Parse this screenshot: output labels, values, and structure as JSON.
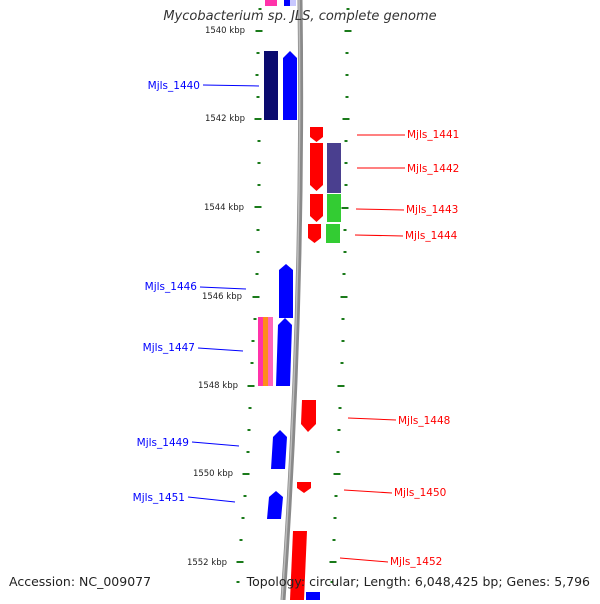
{
  "title": "Mycobacterium sp. JLS, complete genome",
  "accession": "Accession: NC_009077",
  "topology": "Topology: circular; Length: 6,048,425 bp; Genes: 5,796",
  "scale_labels": [
    "1540 kbp",
    "1542 kbp",
    "1544 kbp",
    "1546 kbp",
    "1548 kbp",
    "1550 kbp",
    "1552 kbp"
  ],
  "genes_left": [
    {
      "label": "Mjls_1440",
      "color": "#0000ff"
    },
    {
      "label": "Mjls_1446",
      "color": "#0000ff"
    },
    {
      "label": "Mjls_1447",
      "color": "#0000ff"
    },
    {
      "label": "Mjls_1449",
      "color": "#0000ff"
    },
    {
      "label": "Mjls_1451",
      "color": "#0000ff"
    }
  ],
  "genes_right": [
    {
      "label": "Mjls_1441",
      "color": "#ff0000"
    },
    {
      "label": "Mjls_1442",
      "color": "#ff0000"
    },
    {
      "label": "Mjls_1443",
      "color": "#ff0000"
    },
    {
      "label": "Mjls_1444",
      "color": "#ff0000"
    },
    {
      "label": "Mjls_1448",
      "color": "#ff0000"
    },
    {
      "label": "Mjls_1450",
      "color": "#ff0000"
    },
    {
      "label": "Mjls_1452",
      "color": "#ff0000"
    }
  ],
  "colors": {
    "forward": "#0000ff",
    "reverse": "#ff0000",
    "backbone": "#8a8a8a",
    "ticks": "#1a7a1a",
    "cog_dark_navy": "#0a0a6e",
    "cog_slate": "#4a3f8f",
    "cog_green": "#33cc33",
    "cog_orange": "#ff8c1a",
    "cog_pink": "#ff33aa"
  }
}
